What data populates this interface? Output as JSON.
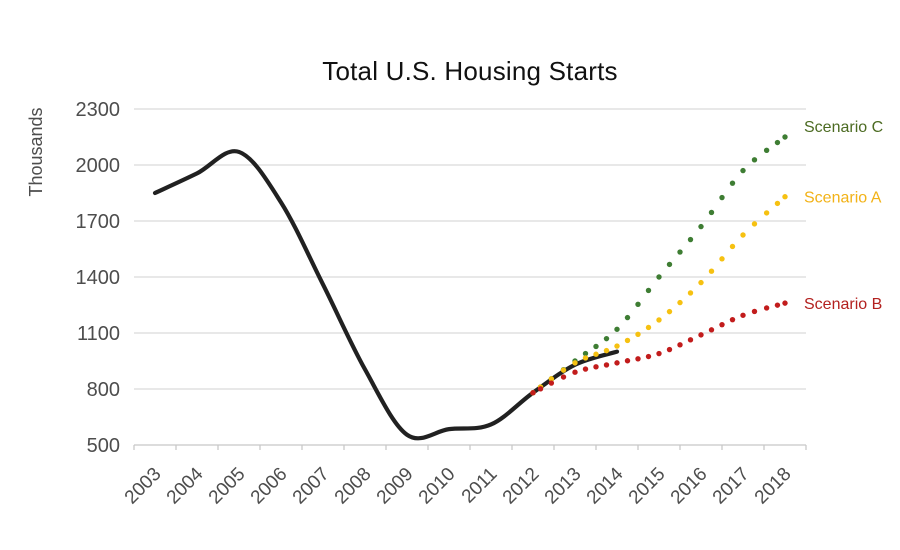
{
  "chart_data": {
    "type": "line",
    "title": "Total U.S. Housing Starts",
    "ylabel": "Thousands",
    "categories": [
      "2003",
      "2004",
      "2005",
      "2006",
      "2007",
      "2008",
      "2009",
      "2010",
      "2011",
      "2012",
      "2013",
      "2014",
      "2015",
      "2016",
      "2017",
      "2018"
    ],
    "yticks": [
      500,
      800,
      1100,
      1400,
      1700,
      2000,
      2300
    ],
    "ylim": [
      500,
      2300
    ],
    "grid": "horizontal",
    "legend_position": "right-of-line-ends",
    "colors": {
      "gridline": "#dadada",
      "axis": "#c8c8c8",
      "tick_text": "#4d4d4d",
      "title_text": "#111111"
    },
    "series": [
      {
        "id": "historical-actual",
        "label": "",
        "style": "solid",
        "color": "#212121",
        "years": [
          2003,
          2004,
          2005,
          2006,
          2007,
          2008,
          2009,
          2010,
          2011,
          2012,
          2013,
          2014
        ],
        "values": [
          1850,
          1955,
          2070,
          1800,
          1360,
          905,
          555,
          585,
          610,
          780,
          930,
          1000
        ]
      },
      {
        "id": "scenario-c",
        "label": "Scenario C",
        "style": "dotted",
        "color": "#3e7d33",
        "label_color": "#4c6b22",
        "years": [
          2012,
          2013,
          2014,
          2015,
          2016,
          2017,
          2018
        ],
        "values": [
          780,
          950,
          1120,
          1400,
          1670,
          1970,
          2150
        ]
      },
      {
        "id": "scenario-a",
        "label": "Scenario A",
        "style": "dotted",
        "color": "#f6c111",
        "label_color": "#f2b217",
        "years": [
          2012,
          2013,
          2014,
          2015,
          2016,
          2017,
          2018
        ],
        "values": [
          780,
          940,
          1030,
          1170,
          1370,
          1625,
          1830
        ]
      },
      {
        "id": "scenario-b",
        "label": "Scenario B",
        "style": "dotted",
        "color": "#c21c1c",
        "label_color": "#b3211f",
        "years": [
          2012,
          2013,
          2014,
          2015,
          2016,
          2017,
          2018
        ],
        "values": [
          780,
          890,
          940,
          990,
          1090,
          1195,
          1260
        ]
      }
    ]
  }
}
